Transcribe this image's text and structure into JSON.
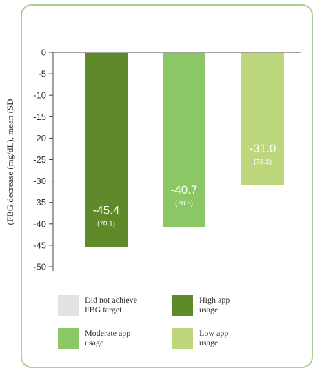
{
  "chart_data": {
    "type": "bar",
    "ylabel": "(FBG decrease (mg/dL), mean (SD",
    "ylim": [
      -50,
      0
    ],
    "yticks": [
      0,
      -5,
      -10,
      -15,
      -20,
      -25,
      -30,
      -35,
      -40,
      -45,
      -50
    ],
    "grid": false,
    "legend_position": "bottom",
    "series": [
      {
        "name": "Did not achieve FBG target",
        "value": null,
        "sd": null,
        "color": "#e2e2e2"
      },
      {
        "name": "High app usage",
        "value": -45.4,
        "sd": 70.1,
        "color": "#5e8a2a"
      },
      {
        "name": "Moderate app usage",
        "value": -40.7,
        "sd": 78.6,
        "color": "#8cc765"
      },
      {
        "name": "Low app usage",
        "value": -31.0,
        "sd": 78.2,
        "color": "#bcd77c"
      }
    ],
    "data_labels": [
      {
        "value": "-45.4",
        "sd": "(70.1)"
      },
      {
        "value": "-40.7",
        "sd": "(78.6)"
      },
      {
        "value": "-31.0",
        "sd": "(78.2)"
      }
    ]
  },
  "legend": {
    "items": [
      {
        "line1": "Did not achieve",
        "line2": "FBG target",
        "color": "#e2e2e2"
      },
      {
        "line1": "High app",
        "line2": "usage",
        "color": "#5e8a2a"
      },
      {
        "line1": "Moderate app",
        "line2": "usage",
        "color": "#8cc765"
      },
      {
        "line1": "Low app",
        "line2": "usage",
        "color": "#bcd77c"
      }
    ]
  }
}
